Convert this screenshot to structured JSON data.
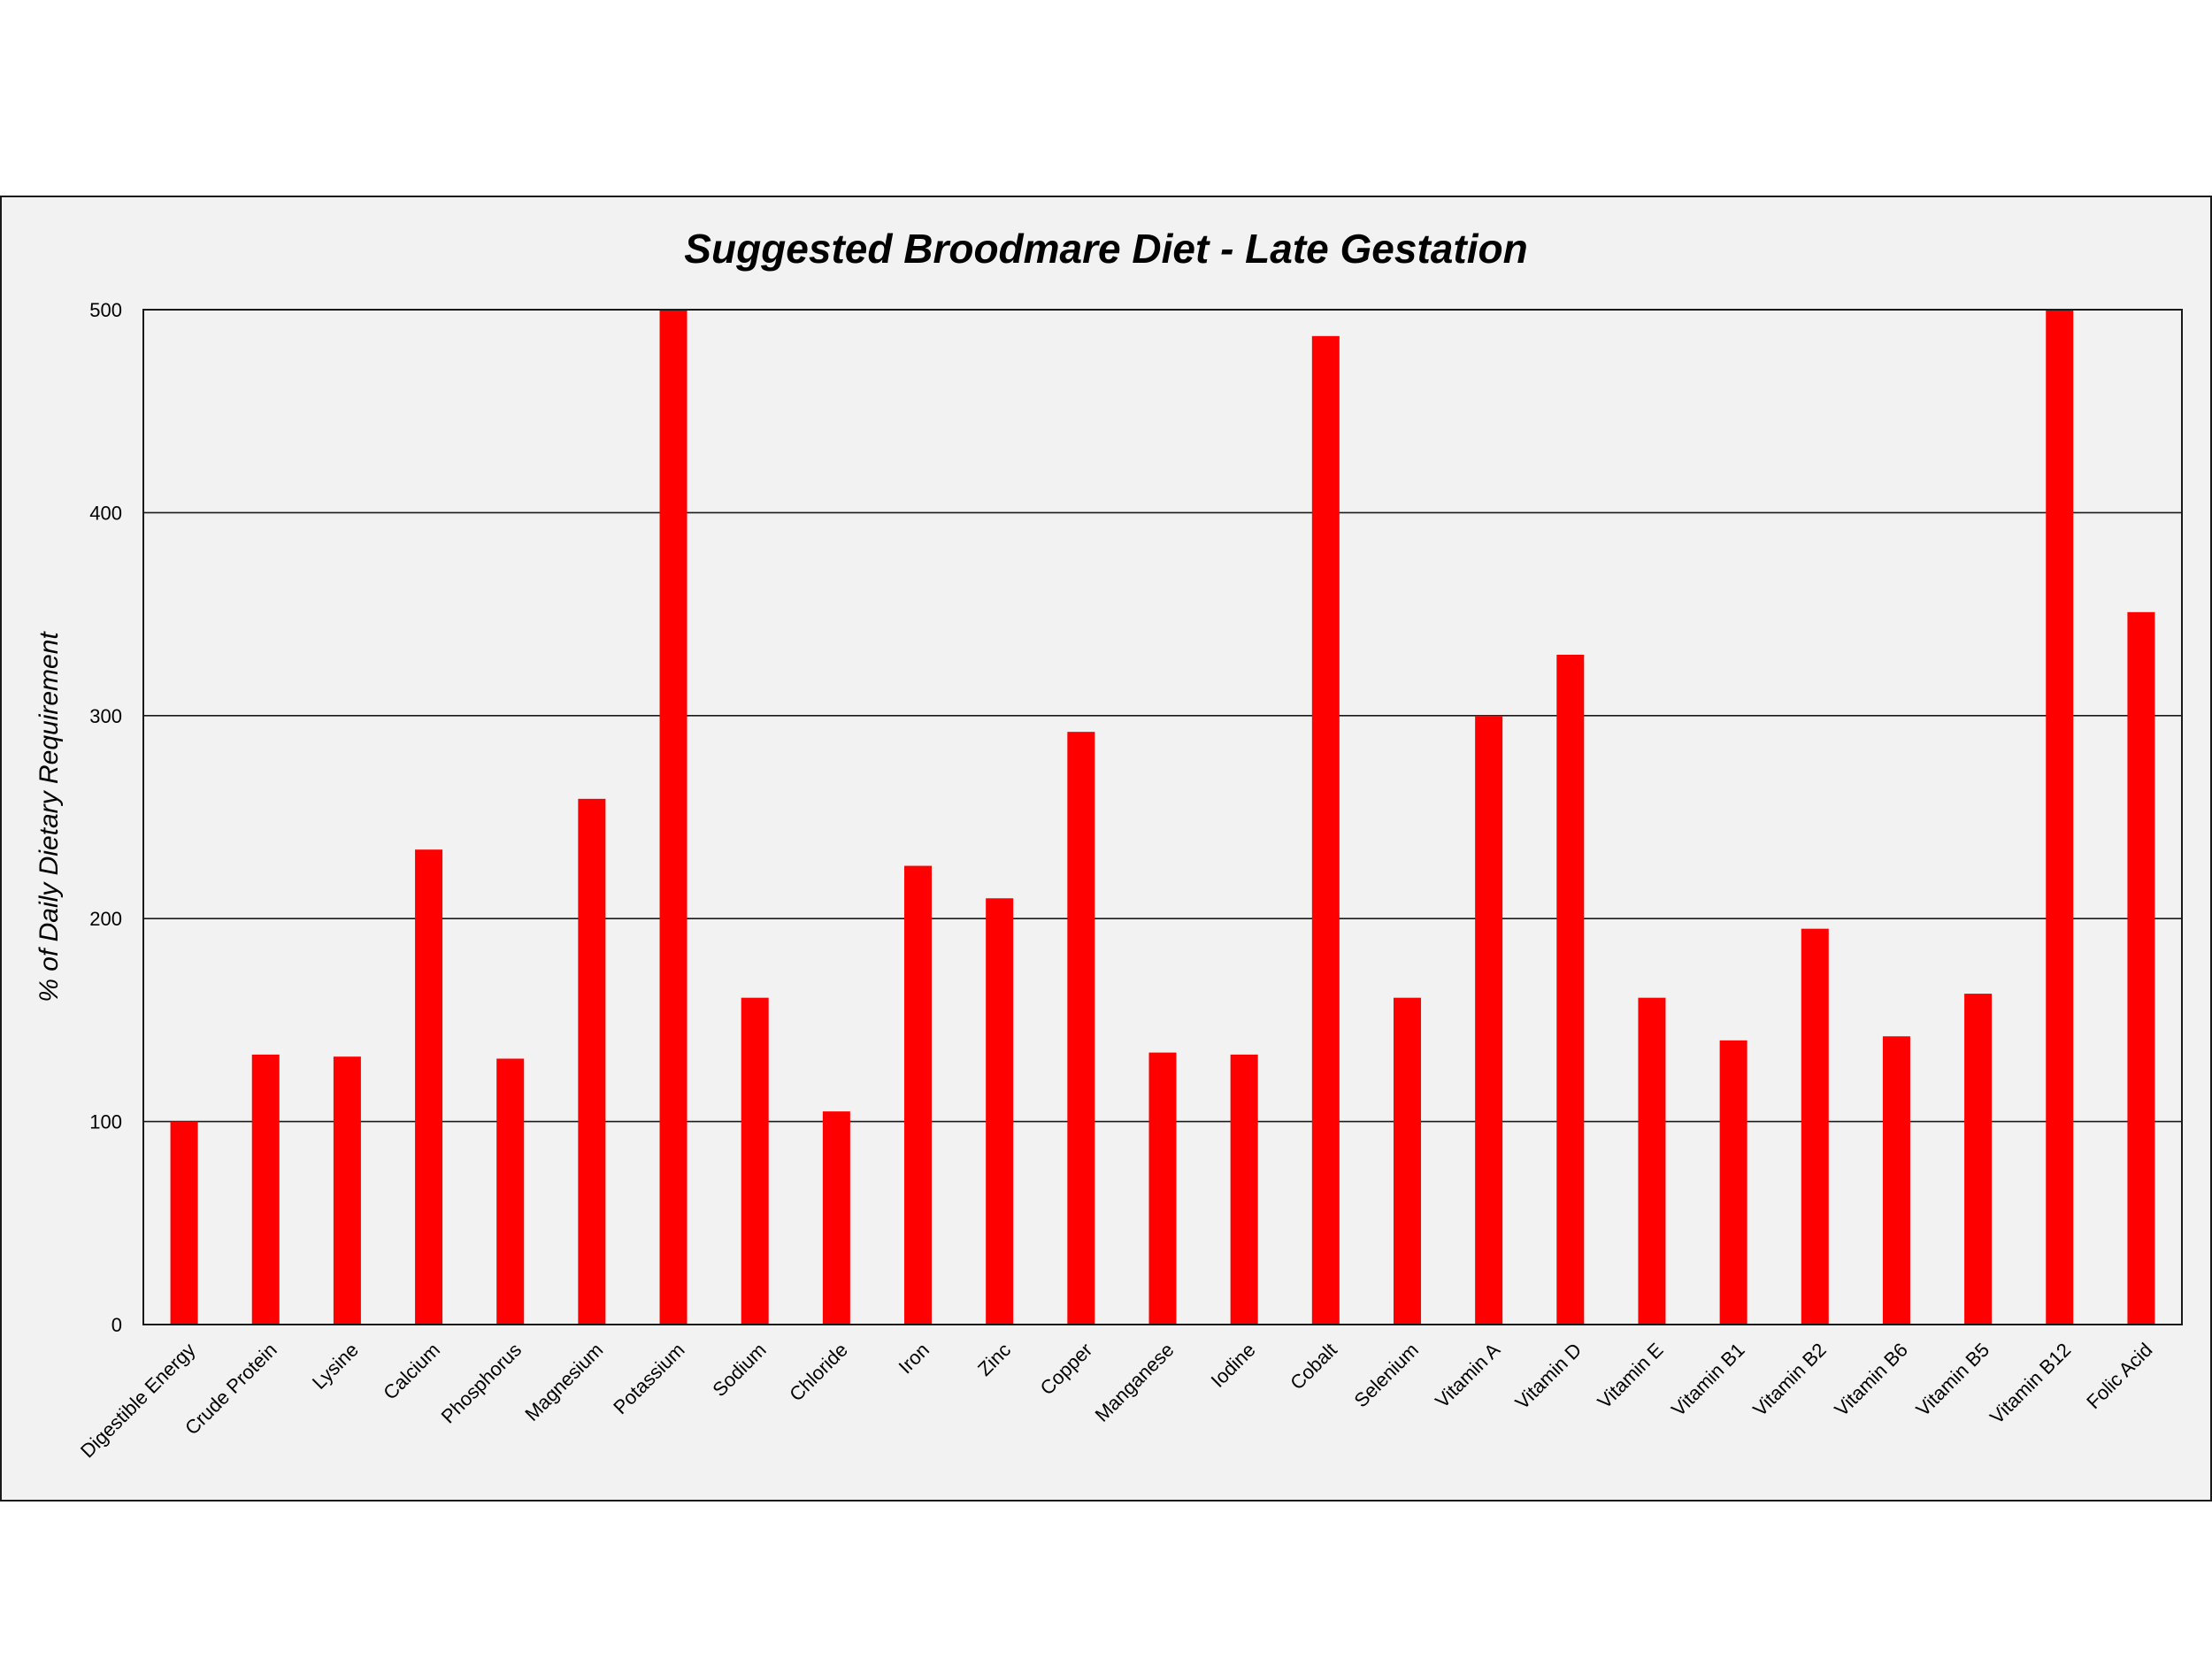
{
  "chart_data": {
    "type": "bar",
    "title": "Suggested Broodmare Diet - Late Gestation",
    "xlabel": "",
    "ylabel": "% of Daily Dietary Requirement",
    "ylim": [
      0,
      500
    ],
    "yticks": [
      0,
      100,
      200,
      300,
      400,
      500
    ],
    "grid": true,
    "legend": "none",
    "bar_color": "#ff0000",
    "categories": [
      "Digestible Energy",
      "Crude Protein",
      "Lysine",
      "Calcium",
      "Phosphorus",
      "Magnesium",
      "Potassium",
      "Sodium",
      "Chloride",
      "Iron",
      "Zinc",
      "Copper",
      "Manganese",
      "Iodine",
      "Cobalt",
      "Selenium",
      "Vitamin A",
      "Vitamin D",
      "Vitamin E",
      "Vitamin B1",
      "Vitamin B2",
      "Vitamin B6",
      "Vitamin B5",
      "Vitamin B12",
      "Folic Acid"
    ],
    "values": [
      100,
      133,
      132,
      234,
      131,
      259,
      500,
      161,
      105,
      226,
      210,
      292,
      134,
      133,
      487,
      161,
      300,
      330,
      161,
      140,
      195,
      142,
      163,
      500,
      351
    ]
  }
}
